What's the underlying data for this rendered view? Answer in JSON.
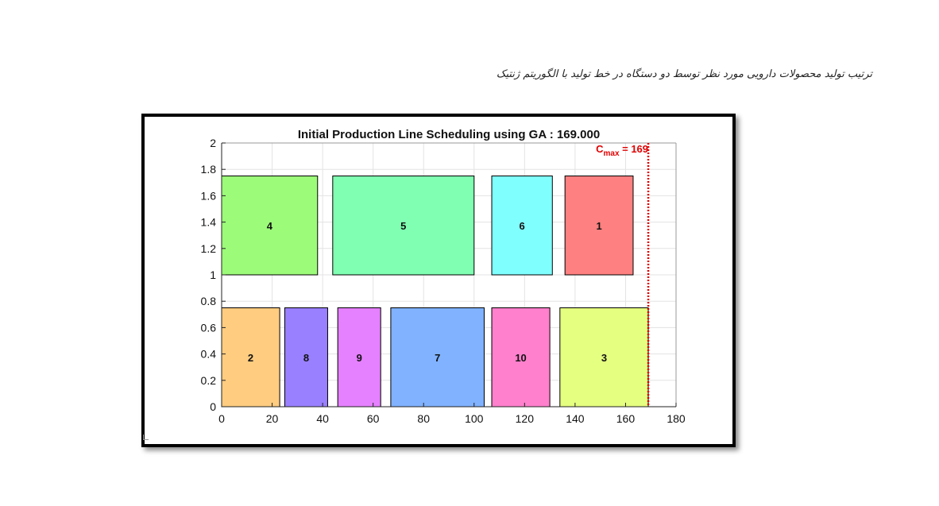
{
  "caption": "ترتیب تولید محصولات دارویی مورد نظر توسط دو دستگاه در خط تولید با الگوریتم ژنتیک",
  "chart_data": {
    "type": "gantt",
    "title": "Initial Production Line Scheduling using GA : 169.000",
    "xlim": [
      0,
      180
    ],
    "ylim": [
      0,
      2
    ],
    "xticks": [
      0,
      20,
      40,
      60,
      80,
      100,
      120,
      140,
      160,
      180
    ],
    "yticks": [
      0,
      0.2,
      0.4,
      0.6,
      0.8,
      1,
      1.2,
      1.4,
      1.6,
      1.8,
      2
    ],
    "xtick_labels": [
      "0",
      "20",
      "40",
      "60",
      "80",
      "100",
      "120",
      "140",
      "160",
      "180"
    ],
    "ytick_labels": [
      "0",
      "0.2",
      "0.4",
      "0.6",
      "0.8",
      "1",
      "1.2",
      "1.4",
      "1.6",
      "1.8",
      "2"
    ],
    "grid": true,
    "cmax": {
      "value": 169,
      "label_main": "C",
      "label_sub": "max",
      "label_rest": " = 169",
      "color": "#e00000"
    },
    "machines": [
      {
        "y_bottom": 1.0,
        "y_top": 1.75,
        "jobs": [
          {
            "label": "4",
            "start": 0,
            "end": 38,
            "color": "#9cfc7a"
          },
          {
            "label": "5",
            "start": 44,
            "end": 100,
            "color": "#80ffb2"
          },
          {
            "label": "6",
            "start": 107,
            "end": 131,
            "color": "#80ffff"
          },
          {
            "label": "1",
            "start": 136,
            "end": 163,
            "color": "#ff8080"
          }
        ]
      },
      {
        "y_bottom": 0,
        "y_top": 0.75,
        "jobs": [
          {
            "label": "2",
            "start": 0,
            "end": 23,
            "color": "#ffcc80"
          },
          {
            "label": "8",
            "start": 25,
            "end": 42,
            "color": "#9980ff"
          },
          {
            "label": "9",
            "start": 46,
            "end": 63,
            "color": "#e580ff"
          },
          {
            "label": "7",
            "start": 67,
            "end": 104,
            "color": "#80b2ff"
          },
          {
            "label": "10",
            "start": 107,
            "end": 130,
            "color": "#ff80cc"
          },
          {
            "label": "3",
            "start": 134,
            "end": 169,
            "color": "#e5ff80"
          }
        ]
      }
    ]
  }
}
